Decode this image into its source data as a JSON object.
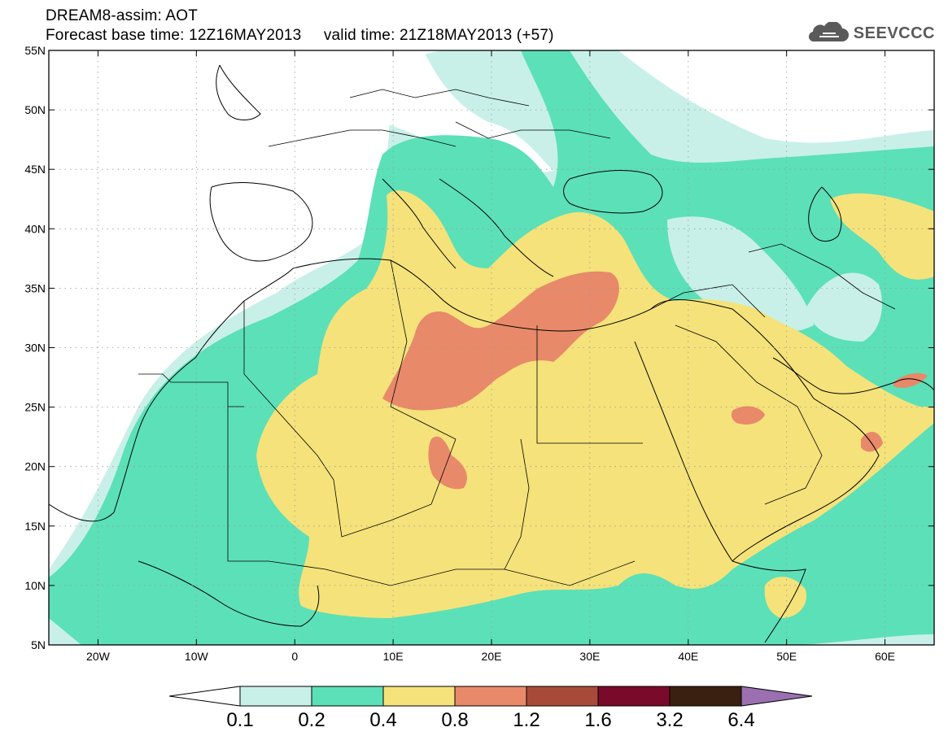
{
  "header": {
    "line1": "DREAM8-assim: AOT",
    "line2": "Forecast base time: 12Z16MAY2013     valid time: 21Z18MAY2013 (+57)"
  },
  "logo": {
    "text": "SEEVCCC",
    "icon": "cloud-icon"
  },
  "map": {
    "lon_range": [
      -25,
      65
    ],
    "lat_range": [
      5,
      55
    ],
    "lon_ticks": [
      "20W",
      "10W",
      "0",
      "10E",
      "20E",
      "30E",
      "40E",
      "50E",
      "60E"
    ],
    "lat_ticks": [
      "55N",
      "50N",
      "45N",
      "40N",
      "35N",
      "30N",
      "25N",
      "20N",
      "15N",
      "10N",
      "5N"
    ],
    "grid": "dotted"
  },
  "legend": {
    "labels": [
      "0.1",
      "0.2",
      "0.4",
      "0.8",
      "1.2",
      "1.6",
      "3.2",
      "6.4"
    ],
    "colors": [
      "#ffffff",
      "#c8f0e8",
      "#5ce0b8",
      "#f5e27a",
      "#e8896a",
      "#a84a3a",
      "#7a0a2a",
      "#3a2010",
      "#9a70b0"
    ]
  },
  "colors": {
    "c01": "#c8f0e8",
    "c02": "#5ce0b8",
    "c04": "#f5e27a",
    "c08": "#e8896a"
  }
}
